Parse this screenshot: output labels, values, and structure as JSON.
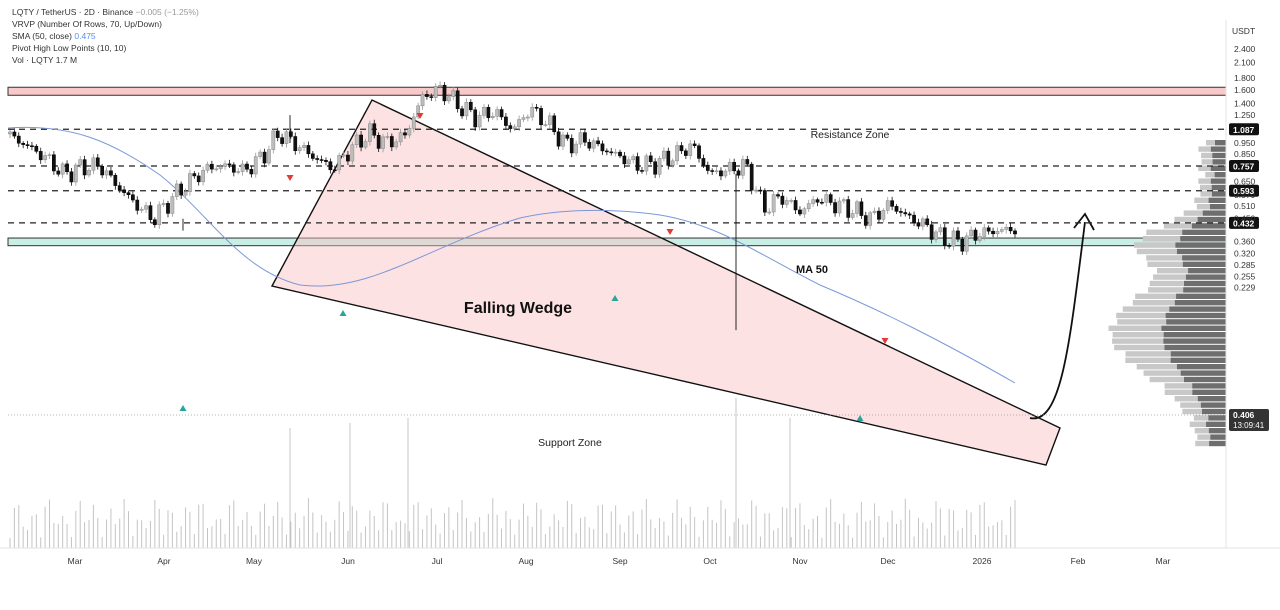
{
  "legend": {
    "symbol": "LQTY / TetherUS · 2D · Binance",
    "change": "−0.005 (−1.25%)",
    "vrvp": "VRVP (Number Of Rows, 70, Up/Down)",
    "sma_label": "SMA (50, close)",
    "sma_value": "0.475",
    "pivot": "Pivot High Low Points (10, 10)",
    "vol_label": "Vol · LQTY",
    "vol_value": "1.7 M"
  },
  "currency": "USDT",
  "chart_data": {
    "type": "candlestick",
    "symbol": "LQTY / TetherUS",
    "interval": "2D",
    "exchange": "Binance",
    "y_scale": "log",
    "y_ticks": [
      {
        "v": 2.4,
        "t": "2.400"
      },
      {
        "v": 2.1,
        "t": "2.100"
      },
      {
        "v": 1.8,
        "t": "1.800"
      },
      {
        "v": 1.6,
        "t": "1.600"
      },
      {
        "v": 1.4,
        "t": "1.400"
      },
      {
        "v": 1.25,
        "t": "1.250"
      },
      {
        "v": 0.95,
        "t": "0.950"
      },
      {
        "v": 0.85,
        "t": "0.850"
      },
      {
        "v": 0.65,
        "t": "0.650"
      },
      {
        "v": 0.57,
        "t": "0.570"
      },
      {
        "v": 0.51,
        "t": "0.510"
      },
      {
        "v": 0.45,
        "t": "0.450"
      },
      {
        "v": 0.36,
        "t": "0.360"
      },
      {
        "v": 0.32,
        "t": "0.320"
      },
      {
        "v": 0.285,
        "t": "0.285"
      },
      {
        "v": 0.255,
        "t": "0.255"
      },
      {
        "v": 0.229,
        "t": "0.229"
      }
    ],
    "price_labels": [
      {
        "v": 1.087,
        "t": "1.087"
      },
      {
        "v": 0.757,
        "t": "0.757"
      },
      {
        "v": 0.593,
        "t": "0.593"
      },
      {
        "v": 0.432,
        "t": "0.432"
      }
    ],
    "current_price": {
      "t": "0.406",
      "countdown": "13:09:41"
    },
    "x_months": [
      "Mar",
      "Apr",
      "May",
      "Jun",
      "Jul",
      "Aug",
      "Sep",
      "Oct",
      "Nov",
      "Dec",
      "2026",
      "Feb",
      "Mar"
    ],
    "annotations": {
      "resistance": "Resistance Zone",
      "support": "Support Zone",
      "pattern": "Falling Wedge",
      "ma": "MA 50"
    },
    "resistance_zone": [
      1.52,
      1.645
    ],
    "support_zone": [
      0.345,
      0.372
    ],
    "horizontal_levels": [
      1.087,
      0.757,
      0.593,
      0.432
    ],
    "ohlc_path": [
      1.02,
      0.92,
      0.82,
      0.7,
      0.75,
      0.76,
      0.62,
      0.52,
      0.45,
      0.55,
      0.65,
      0.74,
      0.76,
      0.72,
      0.82,
      1.05,
      0.93,
      0.82,
      0.74,
      0.9,
      1.05,
      0.95,
      1.02,
      1.5,
      1.62,
      1.38,
      1.22,
      1.3,
      1.08,
      1.33,
      1.15,
      0.93,
      0.98,
      0.9,
      0.83,
      0.76,
      0.78,
      0.84,
      0.93,
      0.7,
      0.73,
      0.76,
      0.5,
      0.56,
      0.48,
      0.55,
      0.52,
      0.49,
      0.45,
      0.52,
      0.46,
      0.42,
      0.37,
      0.36,
      0.39,
      0.4,
      0.406
    ],
    "volume_max": "1.7 M",
    "projection_target": 1.087
  }
}
